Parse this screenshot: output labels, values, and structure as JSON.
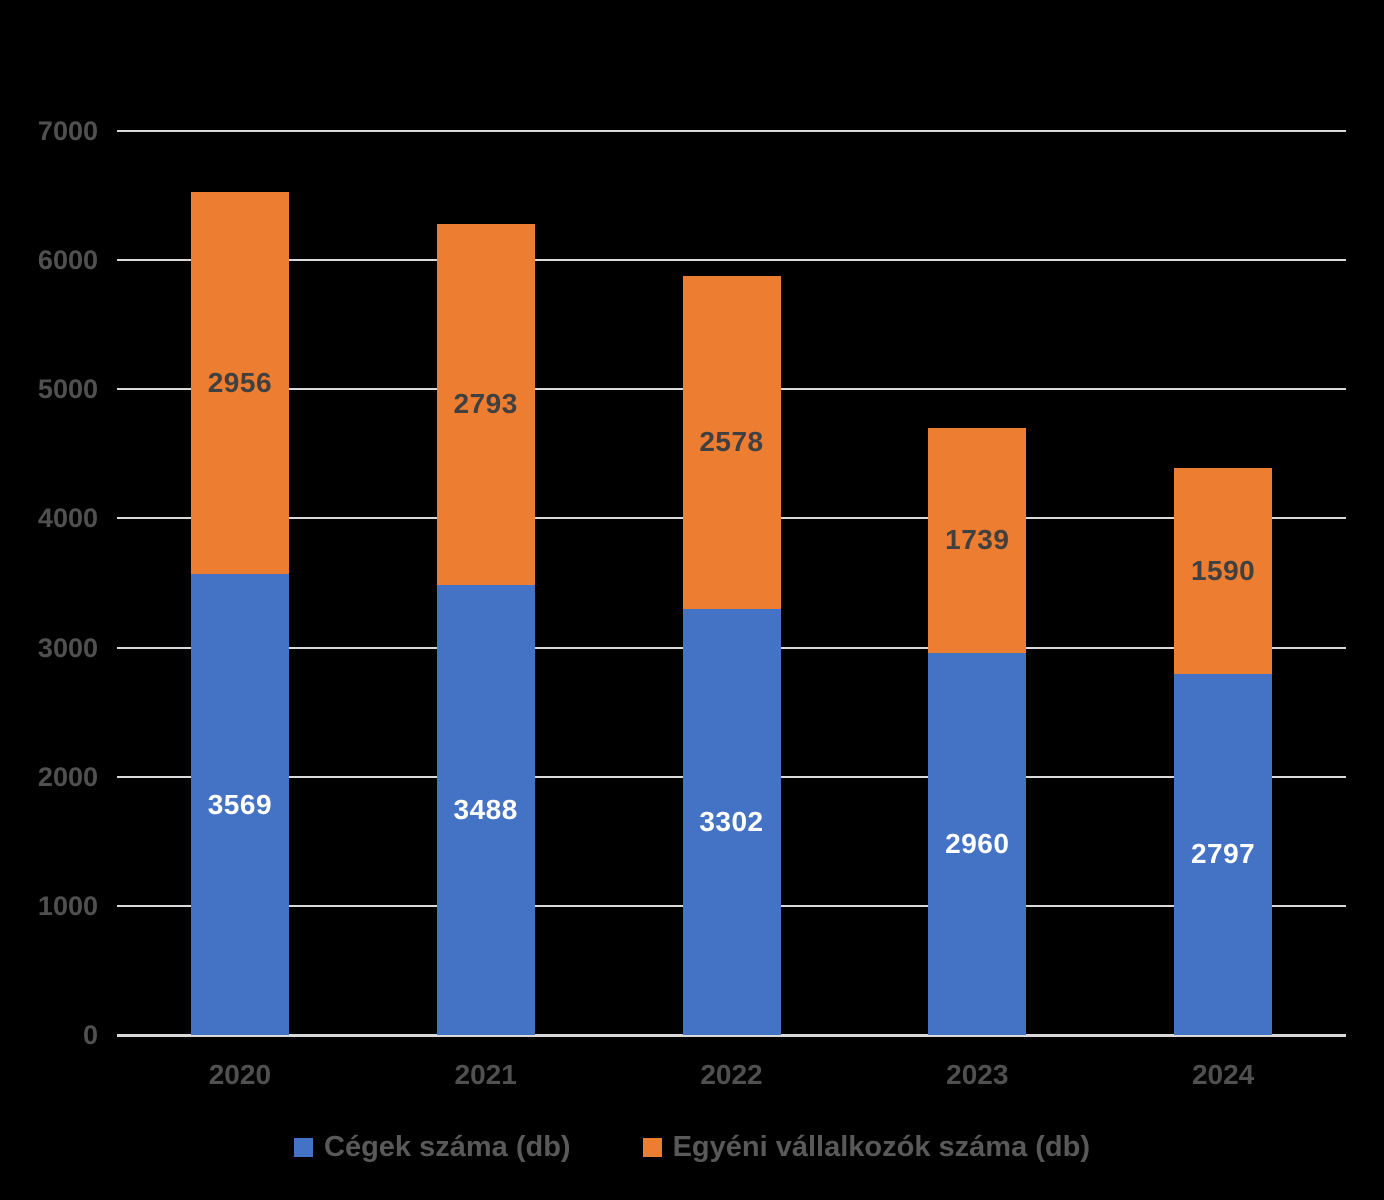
{
  "chart_data": {
    "type": "bar",
    "stacked": true,
    "title": "",
    "xlabel": "",
    "ylabel": "",
    "categories": [
      "2020",
      "2021",
      "2022",
      "2023",
      "2024"
    ],
    "series": [
      {
        "name": "Cégek száma (db)",
        "values": [
          3569,
          3488,
          3302,
          2960,
          2797
        ]
      },
      {
        "name": "Egyéni vállalkozók száma (db)",
        "values": [
          2956,
          2793,
          2578,
          1739,
          1590
        ]
      }
    ],
    "ylim": [
      0,
      7000
    ],
    "yticks": [
      "0",
      "1000",
      "2000",
      "3000",
      "4000",
      "5000",
      "6000",
      "7000"
    ],
    "grid": true,
    "legend_position": "bottom",
    "data_labels": "inside-center"
  },
  "style": {
    "background": "#000000",
    "series_colors": [
      "#4472C4",
      "#ED7D31"
    ],
    "bar_label_colors": [
      "#FFFFFF",
      "#404040"
    ],
    "gridline_color": "#D9D9D9",
    "axis_line_color": "#D9D9D9",
    "tick_label_color": "#505050",
    "x_label_color": "#505050",
    "legend_text_color": "#595959"
  }
}
